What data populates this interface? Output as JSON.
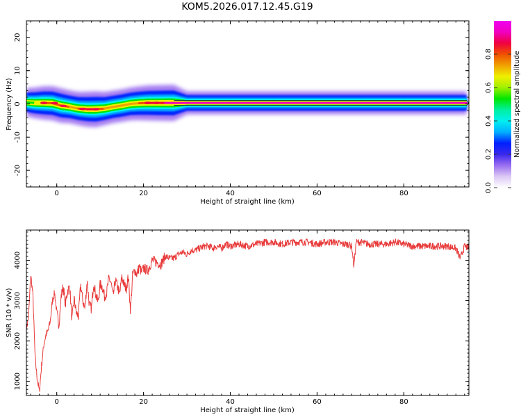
{
  "title": "KOM5.2026.017.12.45.G19",
  "chart_data": [
    {
      "type": "heatmap",
      "title": "KOM5.2026.017.12.45.G19",
      "xlabel": "Height of straight line (km)",
      "ylabel": "Frequency (Hz)",
      "xlim": [
        -7,
        95
      ],
      "ylim": [
        -25,
        25
      ],
      "xticks": [
        0,
        20,
        40,
        60,
        80
      ],
      "yticks": [
        -20,
        -10,
        0,
        10,
        20
      ],
      "ridge": {
        "x": [
          -7,
          -5,
          -3,
          -1,
          1,
          3,
          5,
          7,
          9,
          11,
          13,
          15,
          17,
          19,
          21,
          23,
          25,
          27,
          30,
          40,
          50,
          60,
          70,
          80,
          90,
          94.5
        ],
        "frequency": [
          0.5,
          0.3,
          0.3,
          0.2,
          -0.5,
          -0.9,
          -1.4,
          -1.6,
          -1.6,
          -1.4,
          -0.9,
          -0.5,
          0.0,
          0.2,
          0.3,
          0.3,
          0.3,
          0.3,
          0.3,
          0.3,
          0.3,
          0.3,
          0.3,
          0.3,
          0.3,
          0.3
        ],
        "amplitude": [
          0.45,
          0.6,
          0.75,
          0.8,
          0.82,
          0.72,
          0.75,
          0.85,
          0.9,
          0.75,
          0.7,
          0.7,
          0.72,
          0.78,
          0.85,
          0.88,
          0.9,
          0.92,
          0.95,
          0.95,
          0.95,
          0.95,
          0.95,
          0.95,
          0.95,
          0.95
        ]
      },
      "colorbar": {
        "label": "Normalized spectral amplitude",
        "range": [
          0,
          1
        ],
        "ticks": [
          0.0,
          0.2,
          0.4,
          0.6,
          0.8
        ],
        "tick_labels": [
          "0.0",
          "0.2",
          "0.4",
          "0.6",
          "0.8"
        ],
        "colors": [
          "#ffffff",
          "#dcc8f5",
          "#9a6ef0",
          "#3a28ec",
          "#0020ff",
          "#00b0ff",
          "#00f0f0",
          "#00f0a0",
          "#00e600",
          "#a0f000",
          "#f0f000",
          "#f0a000",
          "#f05000",
          "#f00040",
          "#f000c0",
          "#f000f0"
        ]
      }
    },
    {
      "type": "line",
      "xlabel": "Height of straight line (km)",
      "ylabel": "SNR (10 * v/v)",
      "xlim": [
        -7,
        95
      ],
      "ylim": [
        650,
        4750
      ],
      "xticks": [
        0,
        20,
        40,
        60,
        80
      ],
      "yticks": [
        1000,
        2000,
        3000,
        4000
      ],
      "series": [
        {
          "color": "#e83a3a",
          "x": [
            -7,
            -6.5,
            -6,
            -5.5,
            -5,
            -4.5,
            -4,
            -3.5,
            -3,
            -2.5,
            -2,
            -1.5,
            -1,
            -0.5,
            0,
            0.5,
            1,
            1.5,
            2,
            2.5,
            3,
            3.5,
            4,
            4.5,
            5,
            5.5,
            6,
            6.5,
            7,
            7.5,
            8,
            8.5,
            9,
            9.5,
            10,
            10.5,
            11,
            11.5,
            12,
            12.5,
            13,
            13.5,
            14,
            14.5,
            15,
            15.5,
            16,
            16.5,
            17,
            17.5,
            18,
            18.5,
            19,
            19.5,
            20,
            21,
            22,
            23,
            24,
            25,
            26,
            27,
            28,
            29,
            30,
            31,
            32,
            33,
            34,
            35,
            36,
            37,
            38,
            39,
            40,
            42,
            44,
            46,
            48,
            50,
            52,
            54,
            56,
            58,
            60,
            62,
            64,
            66,
            67,
            68,
            68.5,
            69,
            70,
            72,
            74,
            76,
            78,
            80,
            82,
            84,
            86,
            88,
            90,
            92,
            93,
            94,
            95
          ],
          "values": [
            2300,
            2600,
            3650,
            3150,
            1600,
            1050,
            750,
            1400,
            1900,
            2150,
            2250,
            2500,
            3000,
            3200,
            2700,
            2400,
            3100,
            3350,
            2900,
            3250,
            3350,
            2500,
            3050,
            2700,
            2600,
            3400,
            3000,
            2800,
            3500,
            2900,
            2800,
            3450,
            3150,
            2950,
            3400,
            3350,
            3100,
            3200,
            3550,
            3450,
            3100,
            3500,
            3350,
            3150,
            3600,
            3400,
            3300,
            3600,
            2750,
            3650,
            3750,
            3650,
            3850,
            3700,
            3800,
            3750,
            4000,
            3950,
            3900,
            4100,
            4050,
            4050,
            4150,
            4200,
            4150,
            4250,
            4250,
            4300,
            4350,
            4350,
            4300,
            4350,
            4300,
            4400,
            4350,
            4400,
            4350,
            4400,
            4450,
            4450,
            4400,
            4450,
            4450,
            4450,
            4400,
            4450,
            4450,
            4400,
            4400,
            4350,
            3850,
            4450,
            4450,
            4400,
            4400,
            4400,
            4450,
            4400,
            4350,
            4350,
            4350,
            4350,
            4350,
            4300,
            4050,
            4350,
            4300
          ]
        }
      ]
    }
  ]
}
